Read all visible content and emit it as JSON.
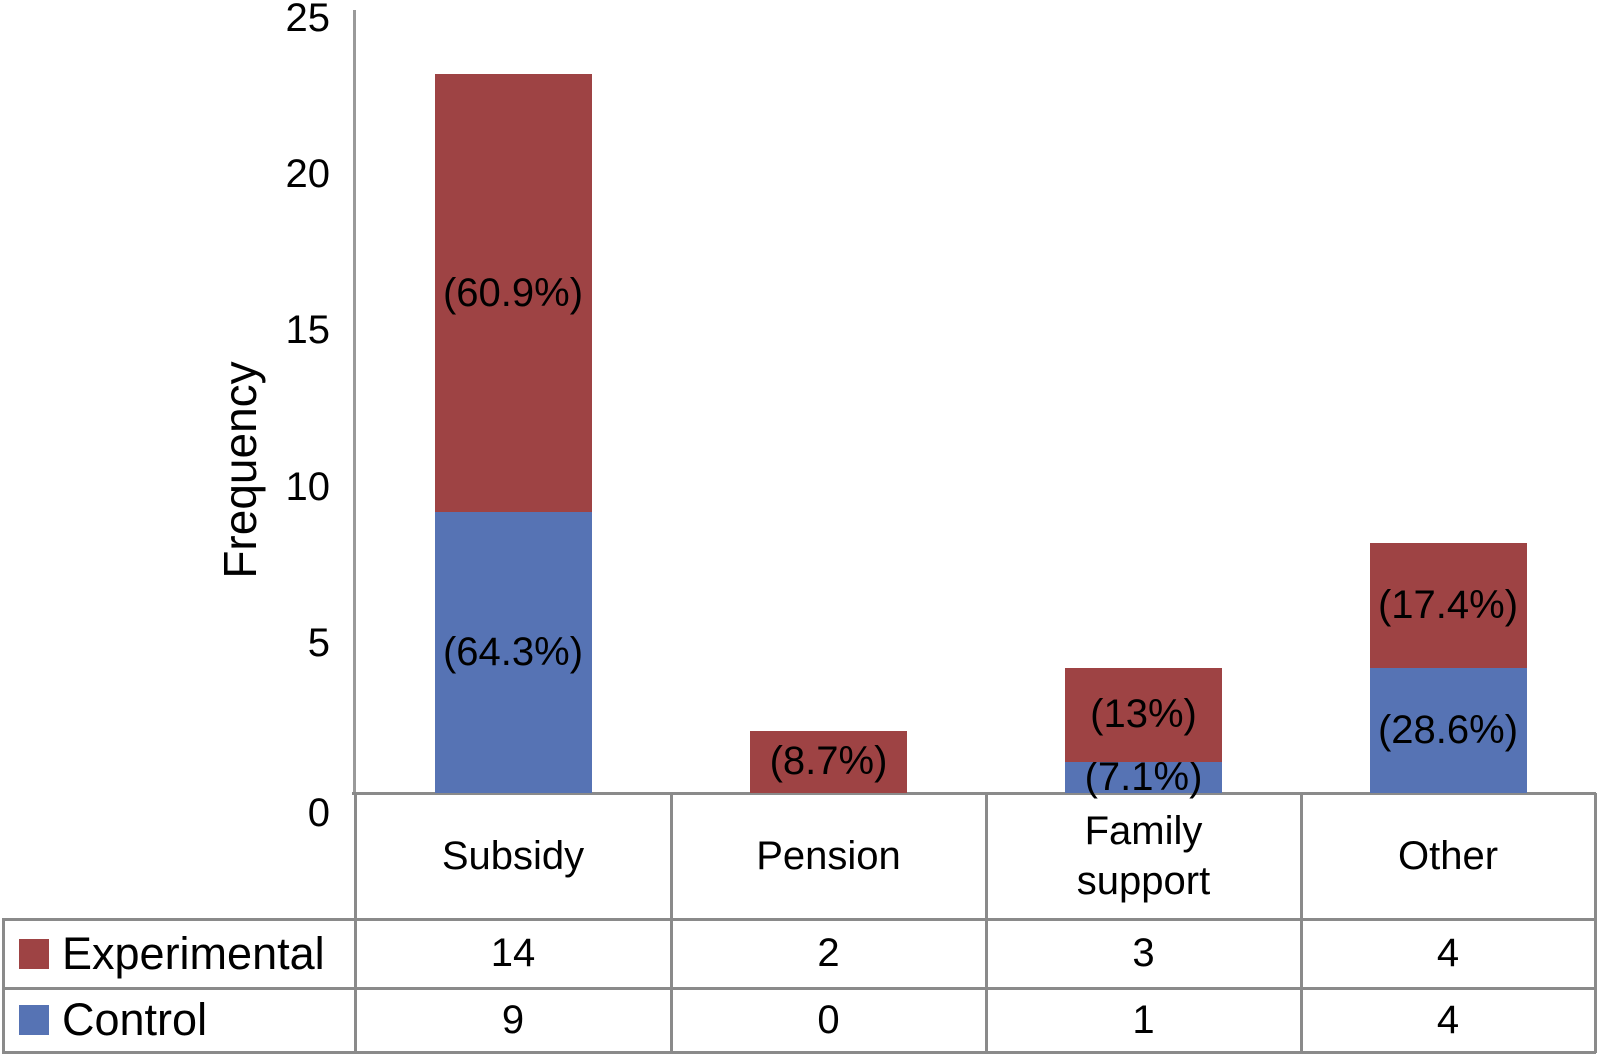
{
  "chart_data": {
    "type": "bar",
    "stacked": true,
    "title": "",
    "xlabel": "",
    "ylabel": "Frequency",
    "ylim": [
      0,
      25
    ],
    "yticks": [
      0,
      5,
      10,
      15,
      20,
      25
    ],
    "grid": false,
    "legend_position": "bottom table with data values",
    "stack_order": "Control segments at bottom, Experimental stacked on top",
    "categories": [
      "Subsidy",
      "Pension",
      "Family support",
      "Other"
    ],
    "series": [
      {
        "name": "Experimental",
        "color": "#9e4344",
        "values": [
          14,
          2,
          3,
          4
        ],
        "segment_labels": [
          "(60.9%)",
          "(8.7%)",
          "(13%)",
          "(17.4%)"
        ]
      },
      {
        "name": "Control",
        "color": "#5673b4",
        "values": [
          9,
          0,
          1,
          4
        ],
        "segment_labels": [
          "(64.3%)",
          "",
          "(7.1%)",
          "(28.6%)"
        ]
      }
    ]
  },
  "colors": {
    "experimental_red": "#9e4344",
    "control_blue": "#5673b4",
    "table_border_gray": "#8a8a8a",
    "axis_gray": "#9a9a9a",
    "text": "#000000",
    "background": "#ffffff"
  }
}
